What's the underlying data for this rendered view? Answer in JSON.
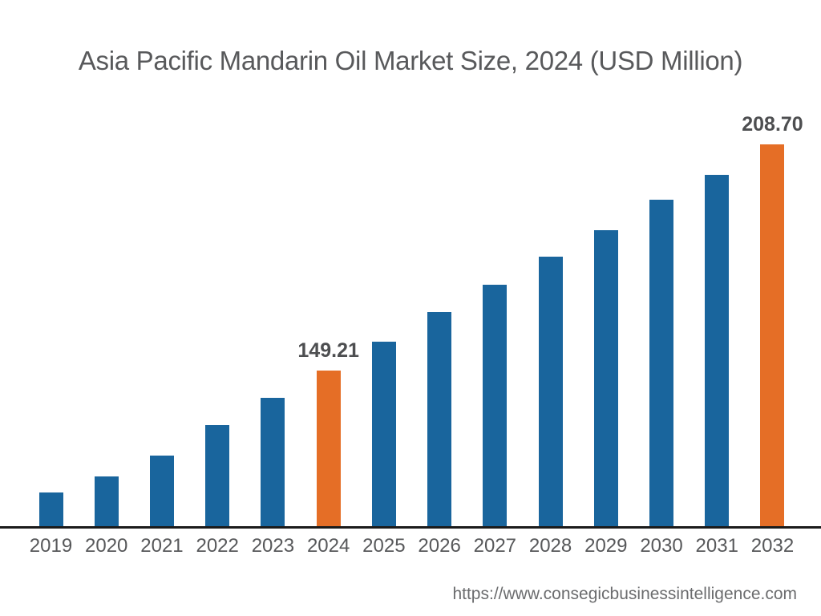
{
  "header": {
    "title": "Asia Pacific Mandarin Oil Market Size, 2024 (USD Million)"
  },
  "footer": {
    "website_url": "https://www.consegicbusinessintelligence.com"
  },
  "colors": {
    "background": "#FFFFFF",
    "bar_default": "#19659D",
    "bar_highlight": "#E56E26",
    "title_text": "#58595B",
    "tick_text": "#57585A",
    "value_label_text": "#4D4E50",
    "axis_line": "#1B1B1B",
    "url_text": "#6B6C6E"
  },
  "chart_data": {
    "type": "bar",
    "title": "Asia Pacific Mandarin Oil Market Size, 2024 (USD Million)",
    "unit": "USD Million",
    "xlabel": "",
    "ylabel": "",
    "grid": false,
    "legend_position": "none",
    "y_axis_visible": false,
    "ylim": [
      108.3,
      215
    ],
    "categories": [
      "2019",
      "2020",
      "2021",
      "2022",
      "2023",
      "2024",
      "2025",
      "2026",
      "2027",
      "2028",
      "2029",
      "2030",
      "2031",
      "2032"
    ],
    "values": [
      117.1,
      121.4,
      126.9,
      134.9,
      142.0,
      149.21,
      156.8,
      164.6,
      171.8,
      179.2,
      186.1,
      194.2,
      200.7,
      208.7
    ],
    "value_labels_shown": {
      "2024": "149.21",
      "2032": "208.70"
    },
    "highlighted_categories": [
      "2024",
      "2032"
    ],
    "bars": [
      {
        "year": "2019",
        "value": 117.1,
        "label": "",
        "highlight": false
      },
      {
        "year": "2020",
        "value": 121.4,
        "label": "",
        "highlight": false
      },
      {
        "year": "2021",
        "value": 126.9,
        "label": "",
        "highlight": false
      },
      {
        "year": "2022",
        "value": 134.9,
        "label": "",
        "highlight": false
      },
      {
        "year": "2023",
        "value": 142.0,
        "label": "",
        "highlight": false
      },
      {
        "year": "2024",
        "value": 149.21,
        "label": "149.21",
        "highlight": true
      },
      {
        "year": "2025",
        "value": 156.8,
        "label": "",
        "highlight": false
      },
      {
        "year": "2026",
        "value": 164.6,
        "label": "",
        "highlight": false
      },
      {
        "year": "2027",
        "value": 171.8,
        "label": "",
        "highlight": false
      },
      {
        "year": "2028",
        "value": 179.2,
        "label": "",
        "highlight": false
      },
      {
        "year": "2029",
        "value": 186.1,
        "label": "",
        "highlight": false
      },
      {
        "year": "2030",
        "value": 194.2,
        "label": "",
        "highlight": false
      },
      {
        "year": "2031",
        "value": 200.7,
        "label": "",
        "highlight": false
      },
      {
        "year": "2032",
        "value": 208.7,
        "label": "208.70",
        "highlight": true
      }
    ]
  }
}
